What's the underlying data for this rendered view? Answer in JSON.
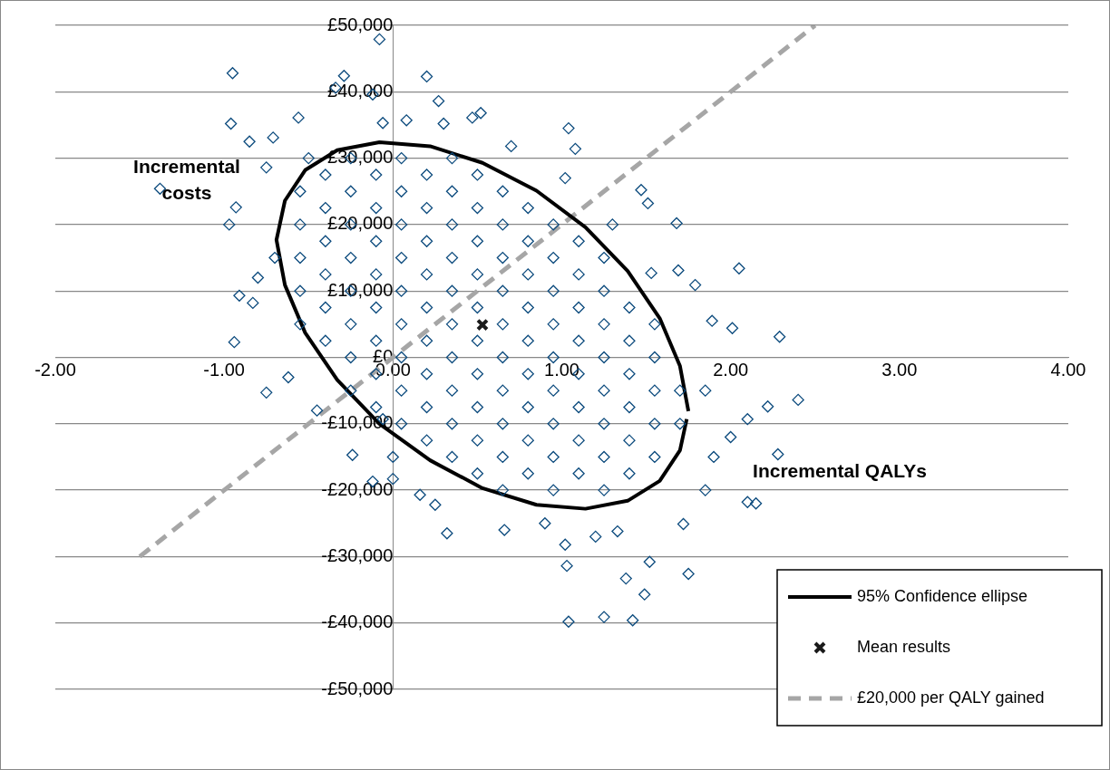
{
  "chart_data": {
    "type": "scatter",
    "xlabel": "Incremental QALYs",
    "ylabel": "Incremental costs",
    "xlim": [
      -2,
      4
    ],
    "ylim": [
      -50000,
      50000
    ],
    "xticks": [
      {
        "value": -2,
        "label": "-2.00"
      },
      {
        "value": -1,
        "label": "-1.00"
      },
      {
        "value": 0,
        "label": "0.00"
      },
      {
        "value": 1,
        "label": "1.00"
      },
      {
        "value": 2,
        "label": "2.00"
      },
      {
        "value": 3,
        "label": "3.00"
      },
      {
        "value": 4,
        "label": "4.00"
      }
    ],
    "yticks": [
      {
        "value": -50000,
        "label": "-£50,000"
      },
      {
        "value": -40000,
        "label": "-£40,000"
      },
      {
        "value": -30000,
        "label": "-£30,000"
      },
      {
        "value": -20000,
        "label": "-£20,000"
      },
      {
        "value": -10000,
        "label": "-£10,000"
      },
      {
        "value": 0,
        "label": "£0"
      },
      {
        "value": 10000,
        "label": "£10,000"
      },
      {
        "value": 20000,
        "label": "£20,000"
      },
      {
        "value": 30000,
        "label": "£30,000"
      },
      {
        "value": 40000,
        "label": "£40,000"
      },
      {
        "value": 50000,
        "label": "£50,000"
      }
    ],
    "grid": "y",
    "legend": "bottom right",
    "series": [
      {
        "type": "scatter",
        "marker": "diamond",
        "color": "#0b4a7d",
        "x": [
          -0.55,
          -0.55,
          -0.55,
          -0.55,
          -0.55,
          -0.4,
          -0.4,
          -0.4,
          -0.4,
          -0.4,
          -0.4,
          -0.25,
          -0.25,
          -0.25,
          -0.25,
          -0.25,
          -0.25,
          -0.25,
          -0.25,
          -0.1,
          -0.1,
          -0.1,
          -0.1,
          -0.1,
          -0.1,
          -0.1,
          -0.1,
          0.05,
          0.05,
          0.05,
          0.05,
          0.05,
          0.05,
          0.05,
          0.05,
          0.05,
          0.2,
          0.2,
          0.2,
          0.2,
          0.2,
          0.2,
          0.2,
          0.2,
          0.2,
          0.35,
          0.35,
          0.35,
          0.35,
          0.35,
          0.35,
          0.35,
          0.35,
          0.35,
          0.35,
          0.5,
          0.5,
          0.5,
          0.5,
          0.5,
          0.5,
          0.5,
          0.5,
          0.5,
          0.5,
          0.65,
          0.65,
          0.65,
          0.65,
          0.65,
          0.65,
          0.65,
          0.65,
          0.65,
          0.65,
          0.8,
          0.8,
          0.8,
          0.8,
          0.8,
          0.8,
          0.8,
          0.8,
          0.8,
          0.95,
          0.95,
          0.95,
          0.95,
          0.95,
          0.95,
          0.95,
          0.95,
          0.95,
          1.1,
          1.1,
          1.1,
          1.1,
          1.1,
          1.1,
          1.1,
          1.1,
          1.25,
          1.25,
          1.25,
          1.25,
          1.25,
          1.25,
          1.25,
          1.25,
          1.4,
          1.4,
          1.4,
          1.4,
          1.4,
          1.4,
          1.55,
          1.55,
          1.55,
          1.55,
          1.55,
          1.7,
          1.7,
          -0.08,
          -0.95,
          0.2,
          -0.29,
          -0.34,
          -0.12,
          0.27,
          -0.96,
          -0.56,
          0.08,
          -0.06,
          0.3,
          0.52,
          0.47,
          -0.85,
          -0.71,
          0.7,
          1.04,
          1.08,
          1.02,
          -0.75,
          -1.38,
          -0.93,
          -0.97,
          -0.91,
          -0.83,
          -0.94,
          -0.75,
          -0.62,
          -0.06,
          -0.24,
          -0.12,
          0,
          0.16,
          0.25,
          0.32,
          0.66,
          1.02,
          1.03,
          1.04,
          1.25,
          1.42,
          1.49,
          1.38,
          1.52,
          1.75,
          1.72,
          1.33,
          2.1,
          2.15,
          2.28,
          2.4,
          2.22,
          2.1,
          2.29,
          2.05,
          1.89,
          2.01,
          1.79,
          1.68,
          1.69,
          1.53,
          1.51,
          1.47,
          -0.7,
          -0.8,
          1.9,
          1.85,
          2.0,
          0.9,
          1.2,
          -0.5,
          1.3,
          0,
          1.85,
          -0.45
        ],
        "values": [
          5000,
          10000,
          15000,
          20000,
          25000,
          2500,
          7500,
          12500,
          17500,
          22500,
          27500,
          -5000,
          0,
          5000,
          10000,
          15000,
          20000,
          25000,
          30000,
          -7500,
          -2500,
          2500,
          7500,
          12500,
          17500,
          22500,
          27500,
          -10000,
          -5000,
          0,
          5000,
          10000,
          15000,
          20000,
          25000,
          30000,
          -12500,
          -7500,
          -2500,
          2500,
          7500,
          12500,
          17500,
          22500,
          27500,
          -15000,
          -10000,
          -5000,
          0,
          5000,
          10000,
          15000,
          20000,
          25000,
          30000,
          -17500,
          -12500,
          -7500,
          -2500,
          2500,
          7500,
          12500,
          17500,
          22500,
          27500,
          -20000,
          -15000,
          -10000,
          -5000,
          0,
          5000,
          10000,
          15000,
          20000,
          25000,
          -17500,
          -12500,
          -7500,
          -2500,
          2500,
          7500,
          12500,
          17500,
          22500,
          -20000,
          -15000,
          -10000,
          -5000,
          0,
          5000,
          10000,
          15000,
          20000,
          -17500,
          -12500,
          -7500,
          -2500,
          2500,
          7500,
          12500,
          17500,
          -20000,
          -15000,
          -10000,
          -5000,
          0,
          5000,
          10000,
          15000,
          -17500,
          -12500,
          -7500,
          -2500,
          2500,
          7500,
          -15000,
          -10000,
          -5000,
          0,
          5000,
          -10000,
          -5000,
          47900,
          42800,
          42300,
          42400,
          40600,
          39600,
          38600,
          35200,
          36100,
          35700,
          35300,
          35200,
          36800,
          36100,
          32500,
          33100,
          31800,
          34500,
          31400,
          27000,
          28600,
          25400,
          22600,
          20000,
          9300,
          8200,
          2300,
          -5300,
          -3000,
          -9300,
          -14700,
          -18700,
          -18300,
          -20700,
          -22200,
          -26500,
          -26000,
          -28200,
          -31400,
          -39800,
          -39100,
          -39600,
          -35700,
          -33300,
          -30800,
          -32600,
          -25100,
          -26200,
          -21800,
          -22000,
          -14600,
          -6400,
          -7400,
          -9300,
          3100,
          13400,
          5500,
          4400,
          10900,
          20200,
          13100,
          12700,
          23200,
          25200,
          15000,
          12000,
          -15000,
          -5000,
          -12000,
          -25000,
          -27000,
          30000,
          20000,
          -15000,
          -20000,
          -8000
        ]
      },
      {
        "type": "line",
        "name": "95% Confidence ellipse",
        "marker": "none",
        "line_style": "solid",
        "color": "#000000",
        "x": [
          1.75,
          1.7,
          1.58,
          1.39,
          1.14,
          0.85,
          0.53,
          0.22,
          -0.08,
          -0.33,
          -0.52,
          -0.64,
          -0.69,
          -0.64,
          -0.52,
          -0.33,
          -0.08,
          0.22,
          0.53,
          0.85,
          1.14,
          1.39,
          1.58,
          1.7,
          1.74
        ],
        "values": [
          -8100,
          -1300,
          5900,
          13000,
          19600,
          25100,
          29300,
          31800,
          32400,
          31200,
          28200,
          23600,
          17700,
          10900,
          3700,
          -3400,
          -10000,
          -15500,
          -19700,
          -22200,
          -22800,
          -21600,
          -18600,
          -14000,
          -9300
        ]
      },
      {
        "type": "scatter",
        "name": "Mean results",
        "marker": "cross",
        "color": "#1a1a1a",
        "x": [
          0.53
        ],
        "values": [
          4900
        ]
      },
      {
        "type": "line",
        "name": "£20,000 per QALY gained",
        "marker": "none",
        "line_style": "dashed",
        "color": "#a6a6a6",
        "x": [
          -1.5,
          2.5
        ],
        "values": [
          -30000,
          50000
        ]
      }
    ]
  }
}
